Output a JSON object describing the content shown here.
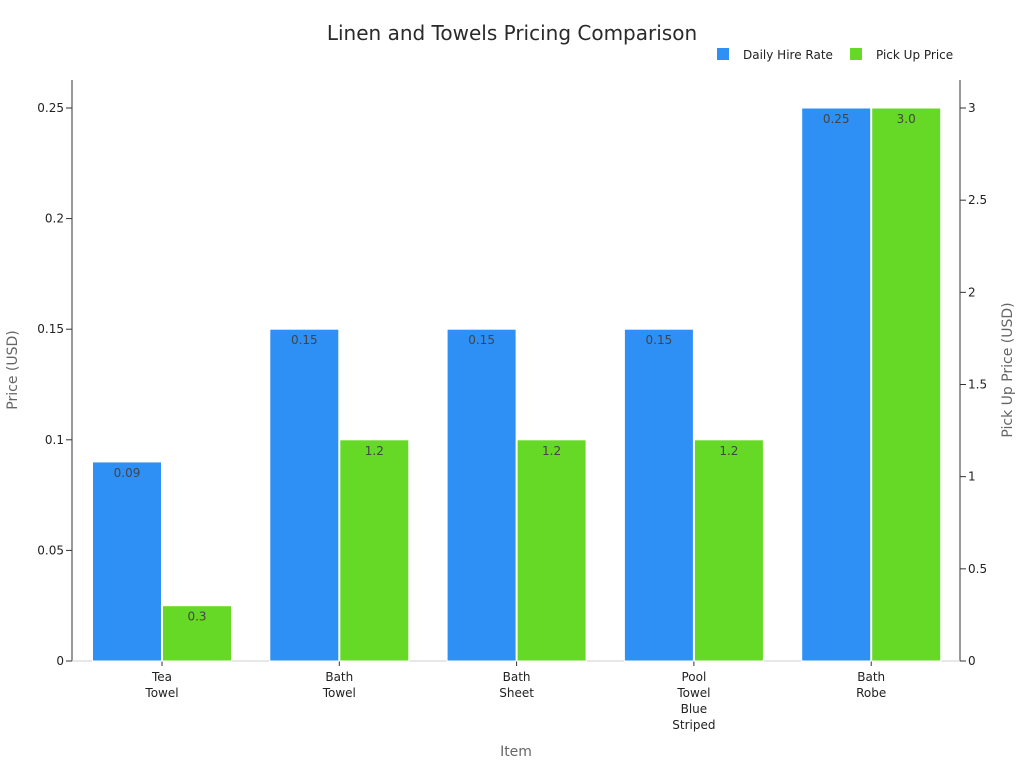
{
  "chart_data": {
    "type": "bar",
    "title": "Linen and Towels Pricing Comparison",
    "xlabel": "Item",
    "ylabel": "Price (USD)",
    "y2label": "Pick Up Price (USD)",
    "categories": [
      [
        "Tea",
        "Towel"
      ],
      [
        "Bath",
        "Towel"
      ],
      [
        "Bath",
        "Sheet"
      ],
      [
        "Pool",
        "Towel",
        "Blue",
        "Striped"
      ],
      [
        "Bath",
        "Robe"
      ]
    ],
    "series": [
      {
        "name": "Daily Hire Rate",
        "axis": "left",
        "color": "#2e8ff5",
        "values": [
          0.09,
          0.15,
          0.15,
          0.15,
          0.25
        ],
        "labels": [
          "0.09",
          "0.15",
          "0.15",
          "0.15",
          "0.25"
        ]
      },
      {
        "name": "Pick Up Price",
        "axis": "right",
        "color": "#66d926",
        "values": [
          0.3,
          1.2,
          1.2,
          1.2,
          3.0
        ],
        "labels": [
          "0.3",
          "1.2",
          "1.2",
          "1.2",
          "3.0"
        ]
      }
    ],
    "ylim": [
      0,
      0.25
    ],
    "y2lim": [
      0,
      3
    ],
    "yticks": [
      {
        "value": 0,
        "label": "0"
      },
      {
        "value": 0.05,
        "label": "0.05"
      },
      {
        "value": 0.1,
        "label": "0.1"
      },
      {
        "value": 0.15,
        "label": "0.15"
      },
      {
        "value": 0.2,
        "label": "0.2"
      },
      {
        "value": 0.25,
        "label": "0.25"
      }
    ],
    "y2ticks": [
      {
        "value": 0,
        "label": "0"
      },
      {
        "value": 0.5,
        "label": "0.5"
      },
      {
        "value": 1,
        "label": "1"
      },
      {
        "value": 1.5,
        "label": "1.5"
      },
      {
        "value": 2,
        "label": "2"
      },
      {
        "value": 2.5,
        "label": "2.5"
      },
      {
        "value": 3,
        "label": "3"
      }
    ],
    "grid": false,
    "legend_position": "top-right"
  }
}
